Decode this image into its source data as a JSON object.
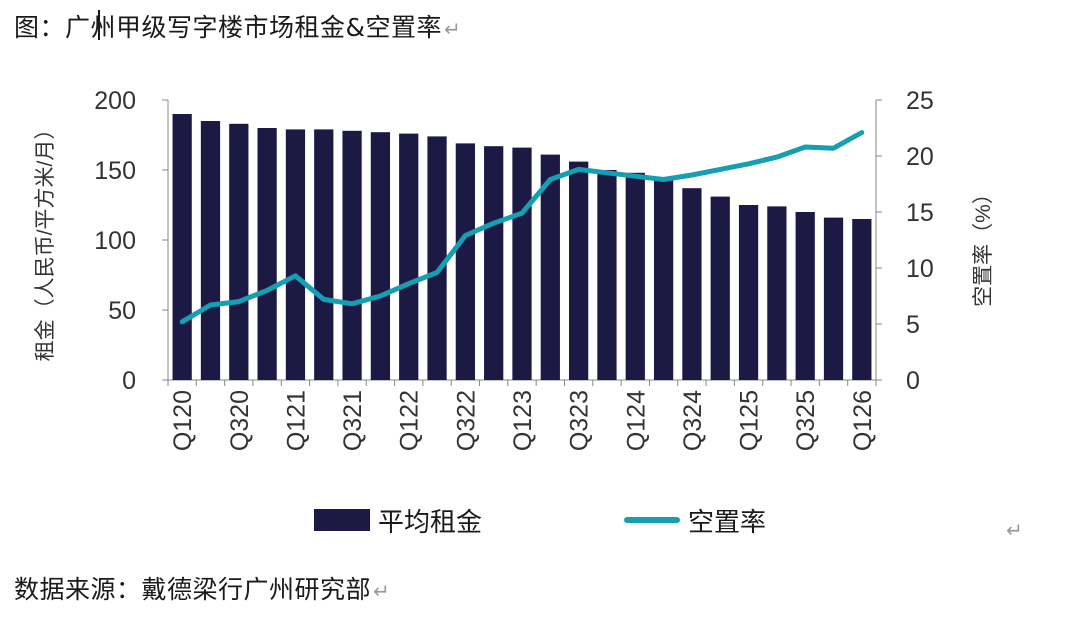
{
  "caption": "图：广州甲级写字楼市场租金&空置率",
  "para_mark": "↵",
  "source": "数据来源：戴德梁行广州研究部",
  "legend": {
    "bar_label": "平均租金",
    "line_label": "空置率"
  },
  "colors": {
    "bar": "#1c1a45",
    "line": "#149fb2"
  },
  "chart_data": {
    "type": "bar",
    "title": "",
    "x": [
      "Q120",
      "Q220",
      "Q320",
      "Q420",
      "Q121",
      "Q221",
      "Q321",
      "Q421",
      "Q122",
      "Q222",
      "Q322",
      "Q422",
      "Q123",
      "Q223",
      "Q323",
      "Q423",
      "Q124",
      "Q224",
      "Q324",
      "Q424",
      "Q125",
      "Q225",
      "Q325",
      "Q425",
      "Q126"
    ],
    "x_tick_labels": [
      "Q120",
      "Q320",
      "Q121",
      "Q321",
      "Q122",
      "Q322",
      "Q123",
      "Q323",
      "Q124",
      "Q324",
      "Q125",
      "Q325",
      "Q126"
    ],
    "ylabel_left": "租金（人民币/平方米/月）",
    "ylabel_right": "空置率（%）",
    "ylim_left": [
      0,
      200
    ],
    "yticks_left": [
      0,
      50,
      100,
      150,
      200
    ],
    "ylim_right": [
      0,
      25
    ],
    "yticks_right": [
      0,
      5,
      10,
      15,
      20,
      25
    ],
    "grid": false,
    "legend_position": "bottom",
    "series": [
      {
        "name": "平均租金",
        "type": "bar",
        "axis": "left",
        "values": [
          190,
          185,
          183,
          180,
          179,
          179,
          178,
          177,
          176,
          174,
          169,
          167,
          166,
          161,
          156,
          150,
          148,
          144,
          137,
          131,
          125,
          124,
          120,
          116,
          115
        ]
      },
      {
        "name": "空置率",
        "type": "line",
        "axis": "right",
        "values": [
          5.2,
          6.7,
          7.0,
          8.0,
          9.3,
          7.2,
          6.8,
          7.5,
          8.6,
          9.6,
          12.9,
          14.0,
          14.9,
          17.9,
          18.8,
          18.5,
          18.2,
          17.9,
          18.3,
          18.8,
          19.3,
          19.9,
          20.8,
          20.7,
          22.1
        ]
      }
    ]
  }
}
